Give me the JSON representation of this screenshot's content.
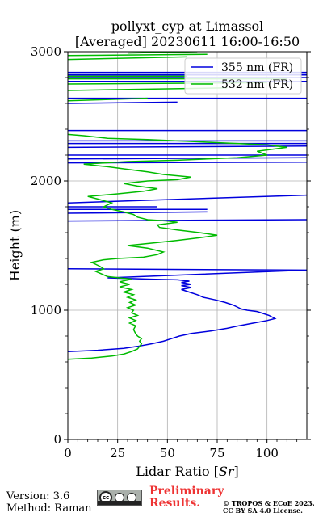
{
  "chart_data": {
    "type": "line",
    "title": "pollyxt_cyp at Limassol",
    "subtitle": "[Averaged] 20230611 16:00-16:50",
    "xlabel": "Lidar Ratio [$Sr$]",
    "xlabel_plain": "Lidar Ratio [",
    "xlabel_unit": "Sr",
    "xlabel_close": "]",
    "ylabel": "Height (m)",
    "xlim": [
      0,
      120
    ],
    "ylim": [
      0,
      3000
    ],
    "xticks": [
      0,
      25,
      50,
      75,
      100
    ],
    "yticks": [
      0,
      1000,
      2000,
      3000
    ],
    "grid": true,
    "legend_position": "top-right",
    "series": [
      {
        "name": "355 nm (FR)",
        "color": "#0000dd",
        "points": [
          [
            0,
            680
          ],
          [
            15,
            690
          ],
          [
            28,
            705
          ],
          [
            35,
            720
          ],
          [
            42,
            740
          ],
          [
            48,
            760
          ],
          [
            52,
            780
          ],
          [
            56,
            800
          ],
          [
            62,
            820
          ],
          [
            72,
            840
          ],
          [
            80,
            860
          ],
          [
            86,
            880
          ],
          [
            93,
            900
          ],
          [
            100,
            920
          ],
          [
            104,
            935
          ],
          [
            101,
            960
          ],
          [
            98,
            975
          ],
          [
            95,
            990
          ],
          [
            90,
            1000
          ],
          [
            87,
            1010
          ],
          [
            85,
            1025
          ],
          [
            83,
            1040
          ],
          [
            79,
            1060
          ],
          [
            74,
            1080
          ],
          [
            68,
            1100
          ],
          [
            65,
            1120
          ],
          [
            61,
            1140
          ],
          [
            57,
            1160
          ],
          [
            62,
            1175
          ],
          [
            57,
            1190
          ],
          [
            62,
            1200
          ],
          [
            57,
            1215
          ],
          [
            61,
            1225
          ],
          [
            55,
            1235
          ],
          [
            42,
            1240
          ],
          [
            20,
            1250
          ],
          [
            120,
            1310
          ],
          [
            0,
            1320
          ]
        ],
        "segments": [
          [
            [
              0,
              1690
            ],
            [
              120,
              1700
            ]
          ],
          [
            [
              0,
              1750
            ],
            [
              70,
              1760
            ]
          ],
          [
            [
              0,
              1780
            ],
            [
              70,
              1780
            ]
          ],
          [
            [
              0,
              1800
            ],
            [
              45,
              1800
            ]
          ],
          [
            [
              0,
              1830
            ],
            [
              120,
              1890
            ]
          ],
          [
            [
              0,
              2140
            ],
            [
              120,
              2145
            ]
          ],
          [
            [
              0,
              2170
            ],
            [
              120,
              2180
            ]
          ],
          [
            [
              0,
              2200
            ],
            [
              120,
              2200
            ]
          ],
          [
            [
              0,
              2260
            ],
            [
              120,
              2270
            ]
          ],
          [
            [
              0,
              2290
            ],
            [
              120,
              2290
            ]
          ],
          [
            [
              0,
              2310
            ],
            [
              120,
              2310
            ]
          ],
          [
            [
              0,
              2390
            ],
            [
              120,
              2390
            ]
          ],
          [
            [
              0,
              2600
            ],
            [
              55,
              2610
            ]
          ],
          [
            [
              0,
              2640
            ],
            [
              120,
              2640
            ]
          ],
          [
            [
              0,
              2770
            ],
            [
              120,
              2770
            ]
          ],
          [
            [
              0,
              2800
            ],
            [
              120,
              2800
            ]
          ],
          [
            [
              0,
              2820
            ],
            [
              120,
              2820
            ]
          ],
          [
            [
              0,
              2840
            ],
            [
              120,
              2840
            ]
          ]
        ]
      },
      {
        "name": "532 nm (FR)",
        "color": "#00bb00",
        "points": [
          [
            0,
            620
          ],
          [
            12,
            630
          ],
          [
            22,
            645
          ],
          [
            28,
            660
          ],
          [
            32,
            680
          ],
          [
            35,
            700
          ],
          [
            36,
            720
          ],
          [
            37,
            740
          ],
          [
            36,
            760
          ],
          [
            37,
            780
          ],
          [
            35,
            800
          ],
          [
            34,
            820
          ],
          [
            33,
            850
          ],
          [
            34,
            880
          ],
          [
            31,
            900
          ],
          [
            34,
            920
          ],
          [
            31,
            940
          ],
          [
            35,
            960
          ],
          [
            32,
            980
          ],
          [
            33,
            1000
          ],
          [
            30,
            1020
          ],
          [
            34,
            1040
          ],
          [
            31,
            1060
          ],
          [
            34,
            1080
          ],
          [
            30,
            1100
          ],
          [
            33,
            1120
          ],
          [
            28,
            1140
          ],
          [
            32,
            1160
          ],
          [
            26,
            1180
          ],
          [
            31,
            1200
          ],
          [
            26,
            1220
          ],
          [
            32,
            1240
          ],
          [
            20,
            1260
          ],
          [
            17,
            1280
          ],
          [
            14,
            1300
          ],
          [
            18,
            1320
          ],
          [
            16,
            1340
          ],
          [
            12,
            1370
          ],
          [
            18,
            1390
          ],
          [
            25,
            1400
          ],
          [
            38,
            1410
          ],
          [
            45,
            1430
          ],
          [
            48,
            1450
          ],
          [
            40,
            1480
          ],
          [
            30,
            1500
          ],
          [
            43,
            1520
          ],
          [
            55,
            1540
          ],
          [
            66,
            1560
          ],
          [
            75,
            1580
          ],
          [
            66,
            1600
          ],
          [
            55,
            1620
          ],
          [
            46,
            1640
          ],
          [
            45,
            1660
          ],
          [
            55,
            1680
          ],
          [
            50,
            1690
          ],
          [
            40,
            1700
          ],
          [
            35,
            1720
          ],
          [
            33,
            1740
          ],
          [
            28,
            1760
          ],
          [
            22,
            1780
          ],
          [
            18,
            1800
          ],
          [
            22,
            1830
          ],
          [
            15,
            1860
          ],
          [
            10,
            1880
          ],
          [
            25,
            1900
          ],
          [
            38,
            1920
          ],
          [
            45,
            1940
          ],
          [
            35,
            1960
          ],
          [
            28,
            1980
          ],
          [
            40,
            2000
          ],
          [
            55,
            2010
          ],
          [
            62,
            2030
          ],
          [
            48,
            2050
          ],
          [
            40,
            2070
          ],
          [
            30,
            2090
          ],
          [
            20,
            2110
          ],
          [
            8,
            2130
          ],
          [
            30,
            2150
          ],
          [
            55,
            2160
          ],
          [
            85,
            2180
          ],
          [
            100,
            2200
          ],
          [
            95,
            2230
          ],
          [
            110,
            2260
          ],
          [
            100,
            2280
          ],
          [
            70,
            2300
          ],
          [
            40,
            2320
          ],
          [
            20,
            2330
          ],
          [
            8,
            2350
          ],
          [
            0,
            2360
          ]
        ],
        "segments": [
          [
            [
              0,
              2620
            ],
            [
              40,
              2640
            ]
          ],
          [
            [
              0,
              2700
            ],
            [
              80,
              2720
            ]
          ],
          [
            [
              0,
              2750
            ],
            [
              100,
              2760
            ]
          ],
          [
            [
              0,
              2790
            ],
            [
              110,
              2790
            ]
          ],
          [
            [
              0,
              2810
            ],
            [
              60,
              2810
            ]
          ],
          [
            [
              0,
              2940
            ],
            [
              60,
              2960
            ]
          ],
          [
            [
              0,
              2970
            ],
            [
              70,
              2980
            ]
          ],
          [
            [
              30,
              2990
            ],
            [
              65,
              3000
            ]
          ]
        ]
      }
    ]
  },
  "footer": {
    "version": "Version: 3.6",
    "method": "Method: Raman",
    "cc_text": "cc",
    "preliminary_line1": "Preliminary",
    "preliminary_line2": "Results.",
    "license_line1": "© TROPOS & ECoE 2023.",
    "license_line2": "CC BY SA 4.0 License."
  }
}
